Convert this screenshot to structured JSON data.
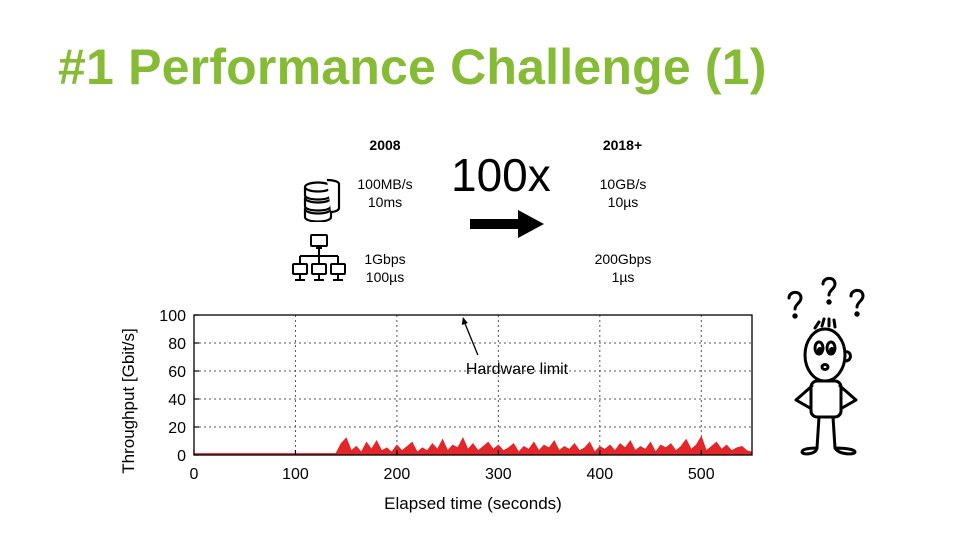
{
  "slide": {
    "title": "#1 Performance Challenge (1)",
    "accent_color": "#86bc35"
  },
  "comparison": {
    "left_year": "2008",
    "right_year": "2018+",
    "factor": "100x",
    "storage": {
      "icon": "database-icon",
      "left_throughput": "100MB/s",
      "left_latency": "10ms",
      "right_throughput": "10GB/s",
      "right_latency": "10µs"
    },
    "network": {
      "icon": "network-icon",
      "left_throughput": "1Gbps",
      "left_latency": "100µs",
      "right_throughput": "200Gbps",
      "right_latency": "1µs"
    },
    "arrow_icon": "arrow-right-icon"
  },
  "figure": {
    "illustration": "confused-stick-figure-icon",
    "question_marks": "? ? ?"
  },
  "chart_data": {
    "type": "area",
    "title": "",
    "xlabel": "Elapsed time (seconds)",
    "ylabel": "Throughput [Gbit/s]",
    "xlim": [
      0,
      550
    ],
    "ylim": [
      0,
      100
    ],
    "xticks": [
      0,
      100,
      200,
      300,
      400,
      500
    ],
    "yticks": [
      0,
      20,
      40,
      60,
      80,
      100
    ],
    "grid": true,
    "series_color": "#e3262a",
    "annotation": {
      "text": "Hardware limit",
      "points_to": {
        "x": 265,
        "y": 100
      }
    },
    "series": [
      {
        "x": [
          0,
          140,
          145,
          150,
          155,
          160,
          165,
          170,
          175,
          180,
          185,
          190,
          195,
          200,
          205,
          210,
          215,
          220,
          225,
          230,
          235,
          240,
          245,
          250,
          255,
          260,
          265,
          270,
          275,
          280,
          285,
          290,
          295,
          300,
          305,
          310,
          315,
          320,
          325,
          330,
          335,
          340,
          345,
          350,
          355,
          360,
          365,
          370,
          375,
          380,
          385,
          390,
          395,
          400,
          405,
          410,
          415,
          420,
          425,
          430,
          435,
          440,
          445,
          450,
          455,
          460,
          465,
          470,
          475,
          480,
          485,
          490,
          495,
          500,
          505,
          510,
          515,
          520,
          525,
          530,
          535,
          540,
          545,
          550
        ],
        "values": [
          1,
          1,
          8,
          12,
          3,
          6,
          2,
          9,
          4,
          10,
          3,
          5,
          2,
          7,
          3,
          6,
          9,
          2,
          5,
          3,
          8,
          4,
          11,
          3,
          7,
          5,
          12,
          4,
          8,
          3,
          6,
          9,
          4,
          7,
          3,
          5,
          8,
          2,
          6,
          4,
          9,
          3,
          7,
          5,
          10,
          3,
          6,
          4,
          8,
          3,
          5,
          9,
          2,
          6,
          4,
          7,
          3,
          8,
          5,
          10,
          3,
          6,
          4,
          9,
          2,
          7,
          5,
          8,
          3,
          6,
          11,
          4,
          7,
          13,
          3,
          6,
          9,
          4,
          7,
          3,
          5,
          6,
          3,
          2
        ]
      }
    ]
  }
}
